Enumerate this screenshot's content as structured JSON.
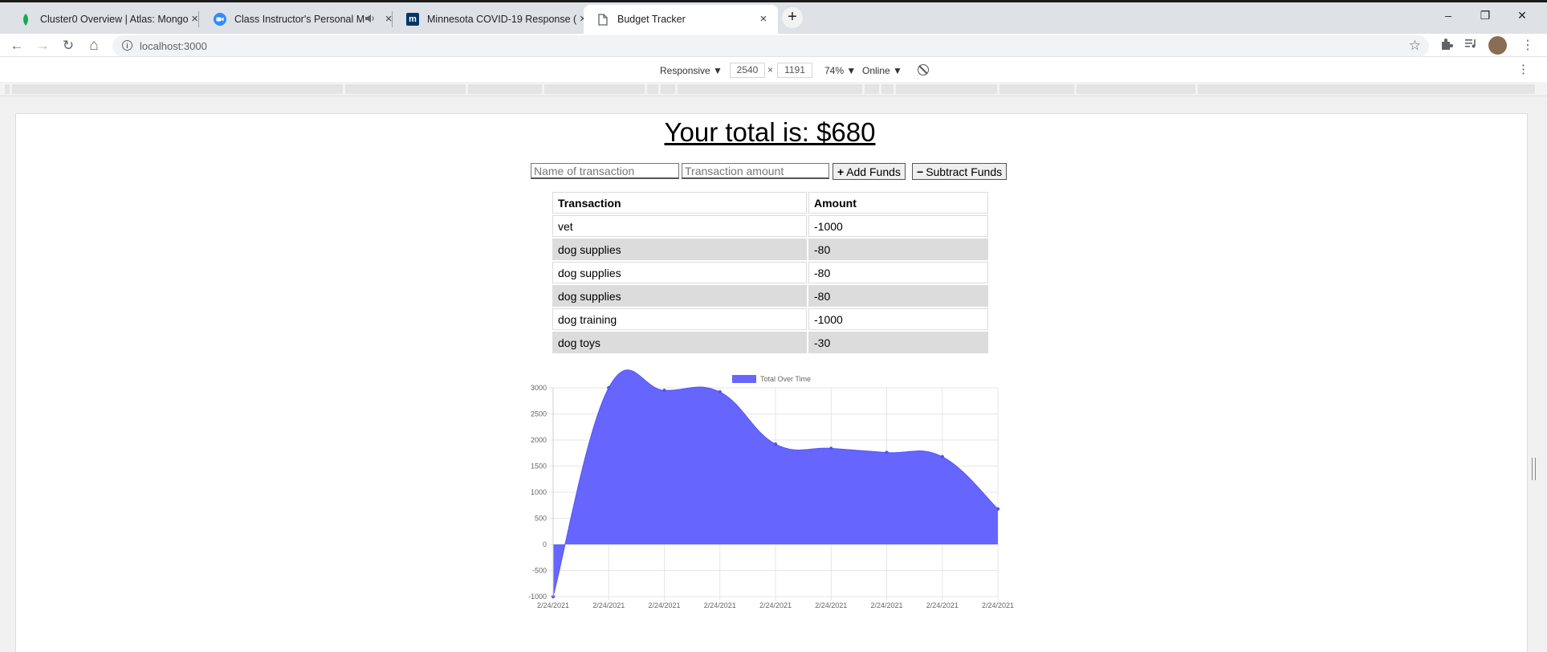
{
  "browser": {
    "tabs": [
      {
        "title": "Cluster0 Overview | Atlas: Mongo",
        "favicon": "mongodb-leaf-icon",
        "close": "×"
      },
      {
        "title": "Class Instructor's Personal M",
        "favicon": "zoom-camera-icon",
        "close": "×",
        "audio_icon": "speaker-icon"
      },
      {
        "title": "Minnesota COVID-19 Response (",
        "favicon": "mn-logo-icon",
        "favicon_text": "m",
        "close": "×"
      },
      {
        "title": "Budget Tracker",
        "favicon": "page-icon",
        "close": "×",
        "active": true
      }
    ],
    "new_tab_label": "+",
    "window": {
      "minimize": "–",
      "restore": "❐",
      "close": "✕"
    },
    "nav": {
      "back": "←",
      "forward": "→",
      "reload": "↻",
      "home": "⌂"
    },
    "address": "localhost:3000",
    "info_glyph": "i",
    "bookmark_glyph": "☆"
  },
  "devtools": {
    "device": "Responsive ▼",
    "width": "2540",
    "times": "×",
    "height": "1191",
    "zoom": "74% ▼",
    "network": "Online ▼",
    "more": "⋮"
  },
  "app": {
    "total_text": "Your total is: $680",
    "name_placeholder": "Name of transaction",
    "amount_placeholder": "Transaction amount",
    "add_label": "Add Funds",
    "add_glyph": "+",
    "subtract_label": "Subtract Funds",
    "subtract_glyph": "−",
    "table": {
      "headers": [
        "Transaction",
        "Amount"
      ],
      "rows": [
        [
          "vet",
          "-1000"
        ],
        [
          "dog supplies",
          "-80"
        ],
        [
          "dog supplies",
          "-80"
        ],
        [
          "dog supplies",
          "-80"
        ],
        [
          "dog training",
          "-1000"
        ],
        [
          "dog toys",
          "-30"
        ]
      ]
    }
  },
  "chart_data": {
    "type": "area",
    "legend": "Total Over Time",
    "legend_position": "top",
    "fill_color": "#6666ff",
    "x": [
      "2/24/2021",
      "2/24/2021",
      "2/24/2021",
      "2/24/2021",
      "2/24/2021",
      "2/24/2021",
      "2/24/2021",
      "2/24/2021",
      "2/24/2021"
    ],
    "series": [
      {
        "name": "Total Over Time",
        "values": [
          -1000,
          3000,
          2950,
          2920,
          1920,
          1840,
          1760,
          1680,
          680
        ]
      }
    ],
    "ylim": [
      -1000,
      3000
    ],
    "yticks": [
      -1000,
      -500,
      0,
      500,
      1000,
      1500,
      2000,
      2500,
      3000
    ],
    "grid": true
  }
}
